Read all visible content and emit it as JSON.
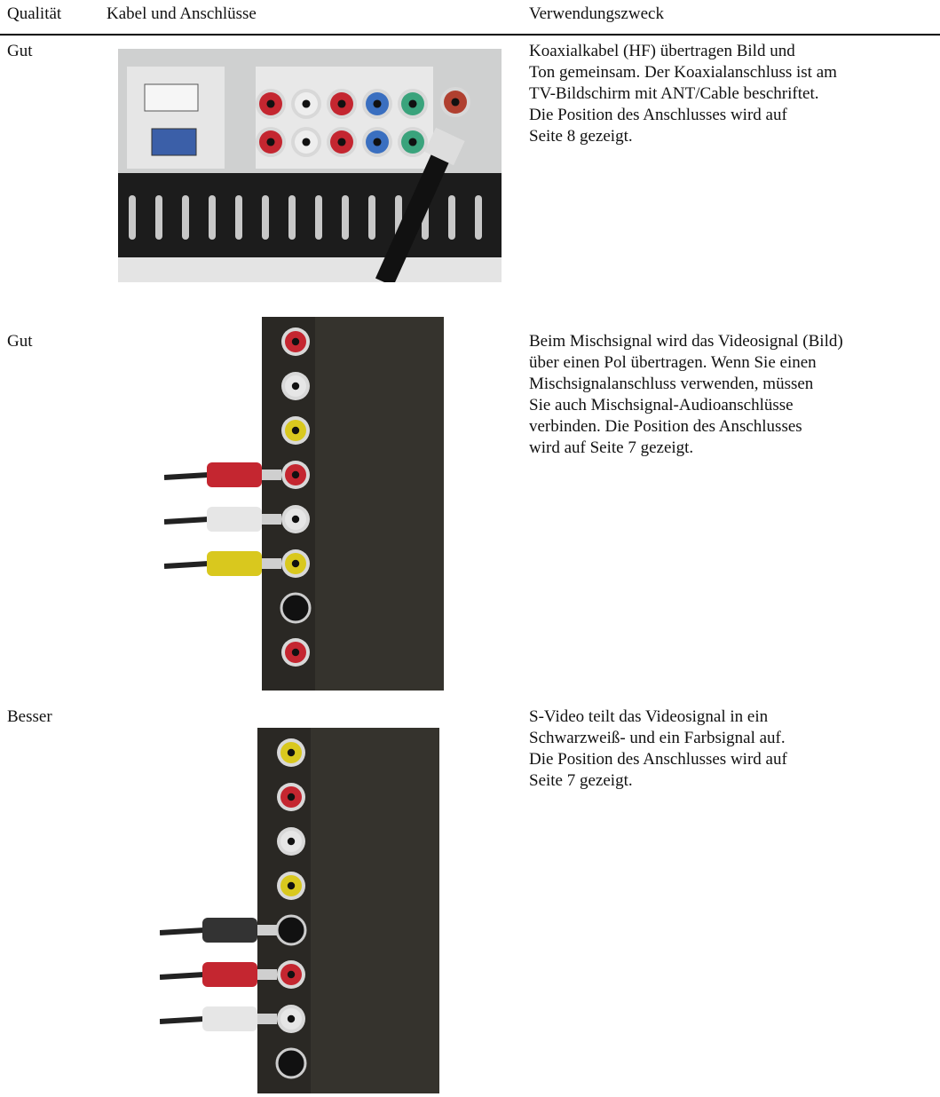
{
  "table": {
    "header": [
      "Qualität",
      "Kabel und Anschlüsse",
      "Verwendungszweck"
    ],
    "rows": [
      {
        "quality": "Gut",
        "description": [
          "Koaxialkabel (HF) übertragen Bild und",
          "Ton gemeinsam. Der Koaxialanschluss ist am",
          "TV-Bildschirm mit ANT/Cable beschriftet.",
          "Die Position des Anschlusses wird auf",
          "Seite 8 gezeigt."
        ]
      },
      {
        "quality": "Gut",
        "description": [
          "Beim Mischsignal wird das Videosignal (Bild)",
          "über einen Pol übertragen. Wenn Sie einen",
          "Mischsignalanschluss verwenden, müssen",
          "Sie auch Mischsignal-Audioanschlüsse",
          "verbinden. Die Position des Anschlusses",
          "wird auf Seite 7 gezeigt."
        ]
      },
      {
        "quality": "Besser",
        "description": [
          "S-Video teilt das Videosignal in ein",
          "Schwarzweiß- und ein Farbsignal auf.",
          "Die Position des Anschlusses wird auf",
          "Seite 7 gezeigt."
        ]
      }
    ]
  }
}
